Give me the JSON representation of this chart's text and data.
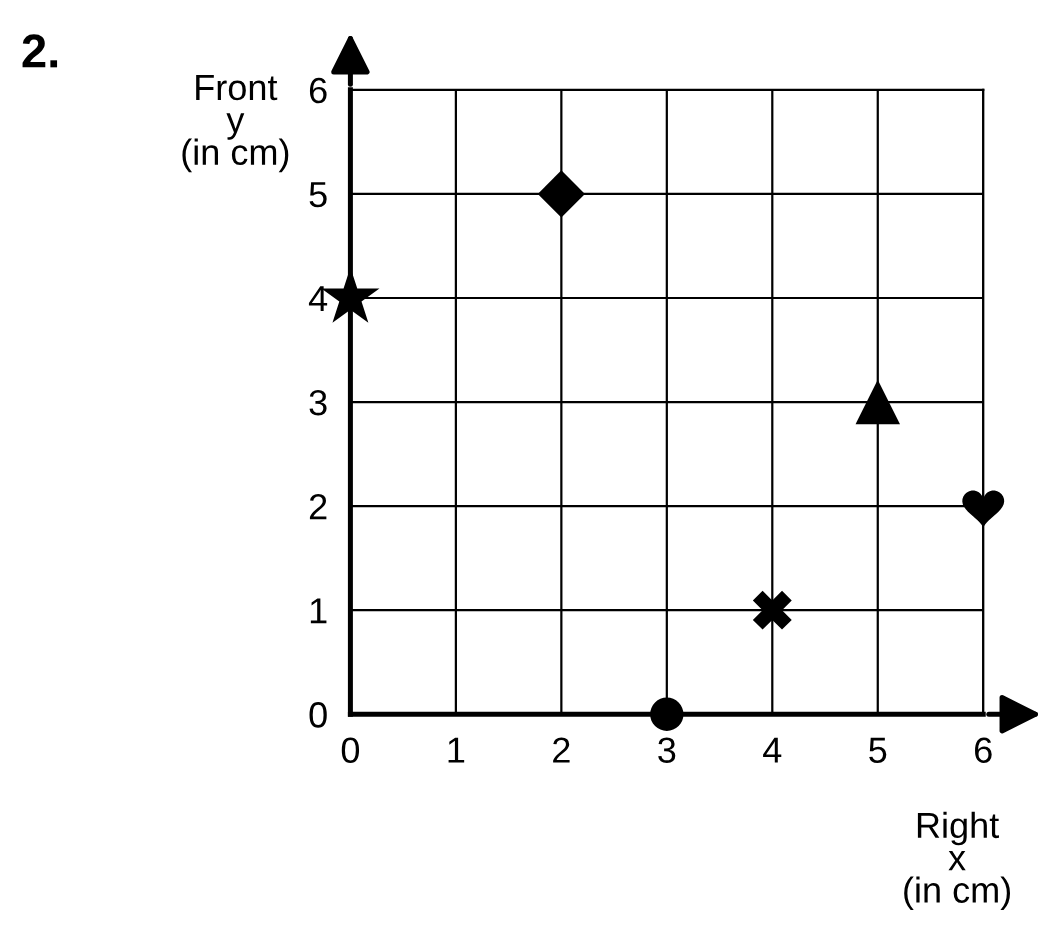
{
  "chart_data": {
    "type": "scatter",
    "title": "2.",
    "xlabel": "Right\nx\n(in cm)",
    "ylabel": "Front\ny\n(in cm)",
    "series": [
      {
        "x": [
          0
        ],
        "values": [
          4
        ],
        "color": "#000000",
        "marker": "star"
      },
      {
        "x": [
          2
        ],
        "values": [
          5
        ],
        "color": "#000000",
        "marker": "diamond"
      },
      {
        "x": [
          5
        ],
        "values": [
          3
        ],
        "color": "#000000",
        "marker": "triangle"
      },
      {
        "x": [
          6
        ],
        "values": [
          2
        ],
        "color": "#000000"
      },
      {
        "x": [
          4
        ],
        "values": [
          1
        ],
        "color": "#000000",
        "marker": "cross"
      },
      {
        "x": [
          3
        ],
        "values": [
          0
        ],
        "color": "#000000",
        "marker": "circle"
      }
    ],
    "xlim": [
      0,
      6
    ],
    "ylim": [
      0,
      6
    ],
    "xticks": [
      0,
      1,
      2,
      3,
      4,
      5,
      6
    ],
    "yticks": [
      0,
      1,
      2,
      3,
      4,
      5,
      6
    ],
    "grid": true
  }
}
